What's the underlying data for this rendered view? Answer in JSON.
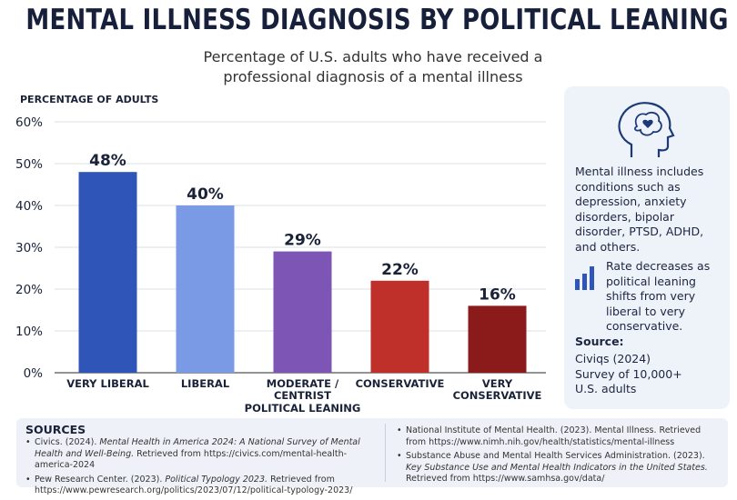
{
  "chart_data": {
    "type": "bar",
    "title": "MENTAL ILLNESS DIAGNOSIS BY POLITICAL LEANING",
    "subtitle": "Percentage of U.S. adults who have received a professional diagnosis of a mental illness",
    "y_label": "PERCENTAGE OF ADULTS",
    "x_label": "POLITICAL LEANING",
    "categories": [
      "VERY LIBERAL",
      "LIBERAL",
      "MODERATE / CENTRIST",
      "CONSERVATIVE",
      "VERY CONSERVATIVE"
    ],
    "values": [
      48,
      40,
      29,
      22,
      16
    ],
    "value_labels": [
      "48%",
      "40%",
      "29%",
      "22%",
      "16%"
    ],
    "colors": [
      "#2f55b8",
      "#7b9ae6",
      "#7d55b5",
      "#c0302b",
      "#8b1a1a"
    ],
    "ylim": [
      0,
      60
    ],
    "yticks": [
      {
        "value": 0,
        "label": "0%"
      },
      {
        "value": 10,
        "label": "10%"
      },
      {
        "value": 20,
        "label": "20%"
      },
      {
        "value": 30,
        "label": "30%"
      },
      {
        "value": 40,
        "label": "40%"
      },
      {
        "value": 50,
        "label": "50%"
      },
      {
        "value": 60,
        "label": "60%"
      }
    ],
    "grid": true
  },
  "sidebar": {
    "note": "Mental illness includes conditions such as depression, anxiety disorders, bipolar disorder, PTSD, ADHD, and others.",
    "trend": "Rate decreases as political leaning shifts from very liberal to very conservative.",
    "source_heading": "Source:",
    "source_lines": [
      "Civiqs (2024)",
      "Survey of 10,000+ U.S. adults"
    ]
  },
  "sources": {
    "heading": "SOURCES",
    "left": [
      [
        "Civics. (2024). ",
        "Mental Health in America 2024: A National Survey of Mental Health and Well-Being.",
        " Retrieved from https://civics.com/mental-health-america-2024"
      ],
      [
        "Pew Research Center. (2023). ",
        "Political Typology 2023.",
        " Retrieved from https://www.pewresearch.org/politics/2023/07/12/political-typology-2023/"
      ]
    ],
    "right": [
      [
        "National Institute of Mental Health. (2023). Mental Illness. Retrieved from https://www.nimh.nih.gov/health/statistics/mental-illness"
      ],
      [
        "Substance Abuse and Mental Health Services Administration. (2023). ",
        "Key Substance Use and Mental Health Indicators in the United States.",
        " Retrieved from https://www.samhsa.gov/data/"
      ]
    ]
  }
}
